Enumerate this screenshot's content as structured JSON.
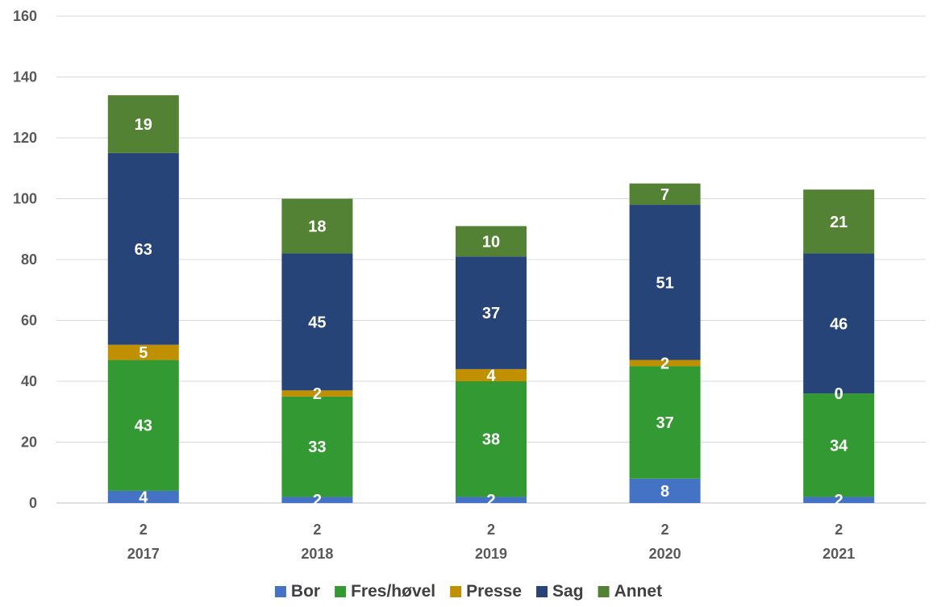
{
  "chart_data": {
    "type": "bar",
    "stacked": true,
    "categories": [
      {
        "line1": "2",
        "line2": "2017"
      },
      {
        "line1": "2",
        "line2": "2018"
      },
      {
        "line1": "2",
        "line2": "2019"
      },
      {
        "line1": "2",
        "line2": "2020"
      },
      {
        "line1": "2",
        "line2": "2021"
      }
    ],
    "series": [
      {
        "name": "Bor",
        "color": "#4472C4",
        "values": [
          4,
          2,
          2,
          8,
          2
        ]
      },
      {
        "name": "Fres/høvel",
        "color": "#339933",
        "values": [
          43,
          33,
          38,
          37,
          34
        ]
      },
      {
        "name": "Presse",
        "color": "#C09000",
        "values": [
          5,
          2,
          4,
          2,
          0
        ]
      },
      {
        "name": "Sag",
        "color": "#264478",
        "values": [
          63,
          45,
          37,
          51,
          46
        ]
      },
      {
        "name": "Annet",
        "color": "#548235",
        "values": [
          19,
          18,
          10,
          7,
          21
        ]
      }
    ],
    "ylim": [
      0,
      160
    ],
    "yticks": [
      0,
      20,
      40,
      60,
      80,
      100,
      120,
      140,
      160
    ],
    "grid": true,
    "legend_position": "bottom",
    "title": "",
    "xlabel": "",
    "ylabel": ""
  }
}
